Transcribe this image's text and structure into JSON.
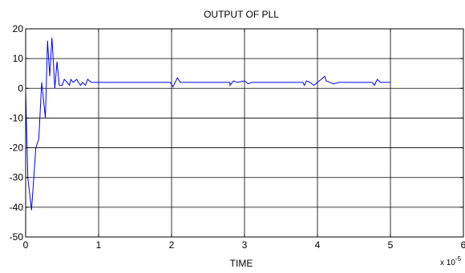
{
  "chart_data": {
    "type": "line",
    "title": "OUTPUT OF PLL",
    "xlabel": "TIME",
    "ylabel": "",
    "x_multiplier": {
      "base": "x 10",
      "exponent": "-5"
    },
    "xlim": [
      0,
      6
    ],
    "ylim": [
      -50,
      20
    ],
    "xticks": [
      0,
      1,
      2,
      3,
      4,
      5,
      6
    ],
    "yticks": [
      -50,
      -40,
      -30,
      -20,
      -10,
      0,
      10,
      20
    ],
    "xtick_labels": [
      "0",
      "1",
      "2",
      "3",
      "4",
      "5",
      "6"
    ],
    "ytick_labels": [
      "-50",
      "-40",
      "-30",
      "-20",
      "-10",
      "0",
      "10",
      "20"
    ],
    "grid": true,
    "series": [
      {
        "color": "#0000ff",
        "x": [
          0,
          0.03,
          0.08,
          0.14,
          0.18,
          0.22,
          0.27,
          0.3,
          0.33,
          0.36,
          0.4,
          0.43,
          0.46,
          0.5,
          0.53,
          0.57,
          0.6,
          0.62,
          0.65,
          0.7,
          0.75,
          0.78,
          0.82,
          0.85,
          0.9,
          0.93,
          1.0,
          1.5,
          1.98,
          2.02,
          2.05,
          2.08,
          2.12,
          2.2,
          2.8,
          2.8,
          2.85,
          2.9,
          3.0,
          3.05,
          3.1,
          3.2,
          3.8,
          3.82,
          3.85,
          3.9,
          3.95,
          4.0,
          4.1,
          4.12,
          4.17,
          4.22,
          4.3,
          4.75,
          4.78,
          4.82,
          4.86,
          5.0
        ],
        "values": [
          -1,
          -30,
          -41,
          -20,
          -17,
          2,
          -10,
          16,
          4,
          17,
          0,
          9,
          1,
          1,
          3,
          2,
          1,
          3,
          2,
          3,
          1,
          2,
          1,
          3,
          2,
          2,
          2,
          2,
          2,
          0.5,
          2,
          3.5,
          2,
          2,
          2,
          1,
          2.5,
          2,
          2.5,
          1.5,
          2,
          2,
          2,
          1,
          2.5,
          2,
          1,
          2,
          4,
          2.5,
          2,
          1.5,
          2,
          2,
          1,
          3,
          2,
          2
        ]
      }
    ]
  }
}
